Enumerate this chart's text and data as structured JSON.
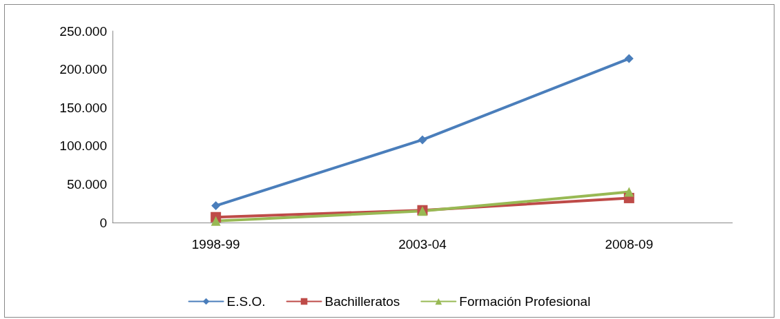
{
  "chart_data": {
    "type": "line",
    "categories": [
      "1998-99",
      "2003-04",
      "2008-09"
    ],
    "series": [
      {
        "name": "E.S.O.",
        "color": "#4a7ebb",
        "marker": "diamond",
        "values": [
          22000,
          108000,
          214000
        ]
      },
      {
        "name": "Bachilleratos",
        "color": "#be4b48",
        "marker": "square",
        "values": [
          7000,
          16000,
          32000
        ]
      },
      {
        "name": "Formación Profesional",
        "color": "#98b954",
        "marker": "triangle",
        "values": [
          2000,
          15000,
          40000
        ]
      }
    ],
    "ylim": [
      0,
      250000
    ],
    "yticks": [
      {
        "value": 0,
        "label": "0"
      },
      {
        "value": 50000,
        "label": "50.000"
      },
      {
        "value": 100000,
        "label": "100.000"
      },
      {
        "value": 150000,
        "label": "150.000"
      },
      {
        "value": 200000,
        "label": "200.000"
      },
      {
        "value": 250000,
        "label": "250.000"
      }
    ],
    "grid": false,
    "legend": "bottom",
    "line_style": "solid"
  }
}
